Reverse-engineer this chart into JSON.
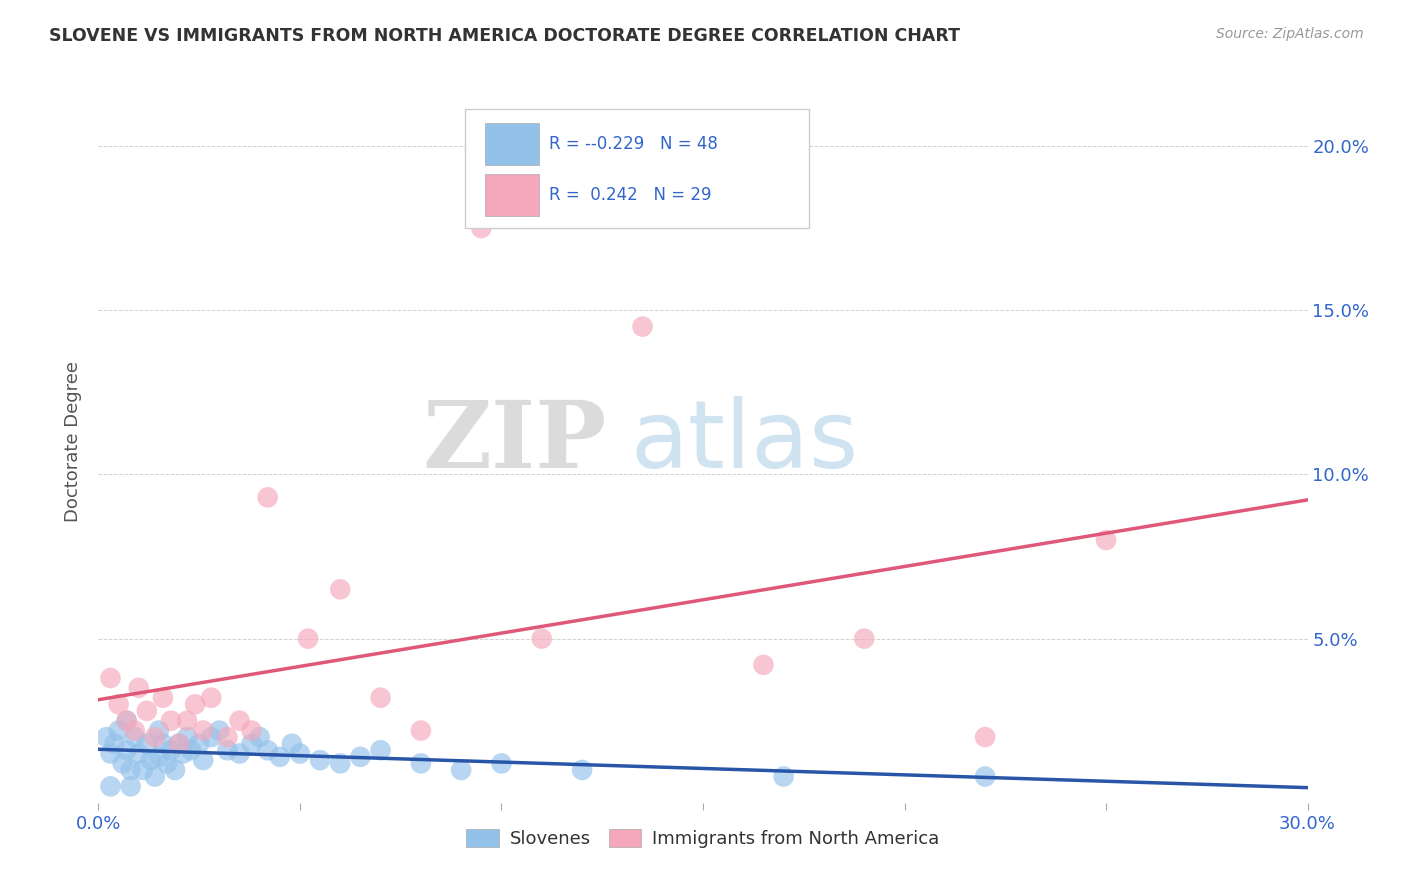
{
  "title": "SLOVENE VS IMMIGRANTS FROM NORTH AMERICA DOCTORATE DEGREE CORRELATION CHART",
  "source": "Source: ZipAtlas.com",
  "ylabel": "Doctorate Degree",
  "xlim": [
    0.0,
    0.3
  ],
  "ylim": [
    0.0,
    0.22
  ],
  "xticks": [
    0.0,
    0.05,
    0.1,
    0.15,
    0.2,
    0.25,
    0.3
  ],
  "yticks": [
    0.0,
    0.05,
    0.1,
    0.15,
    0.2
  ],
  "xtick_labels": [
    "0.0%",
    "",
    "",
    "",
    "",
    "",
    "30.0%"
  ],
  "ytick_labels_right": [
    "",
    "5.0%",
    "10.0%",
    "15.0%",
    "20.0%"
  ],
  "blue_color": "#92C1EA",
  "pink_color": "#F5A8BB",
  "blue_line_color": "#2855A8",
  "pink_line_color": "#E05878",
  "legend_r_blue": "-0.229",
  "legend_n_blue": "48",
  "legend_r_pink": "0.242",
  "legend_n_pink": "29",
  "slovenes_label": "Slovenes",
  "immigrants_label": "Immigrants from North America",
  "watermark_zip": "ZIP",
  "watermark_atlas": "atlas",
  "blue_x": [
    0.002,
    0.003,
    0.004,
    0.005,
    0.006,
    0.007,
    0.007,
    0.008,
    0.009,
    0.01,
    0.011,
    0.012,
    0.013,
    0.014,
    0.015,
    0.015,
    0.016,
    0.017,
    0.018,
    0.019,
    0.02,
    0.021,
    0.022,
    0.023,
    0.025,
    0.026,
    0.028,
    0.03,
    0.032,
    0.035,
    0.038,
    0.04,
    0.042,
    0.045,
    0.048,
    0.05,
    0.055,
    0.06,
    0.065,
    0.07,
    0.08,
    0.09,
    0.1,
    0.12,
    0.17,
    0.22,
    0.003,
    0.008
  ],
  "blue_y": [
    0.02,
    0.015,
    0.018,
    0.022,
    0.012,
    0.016,
    0.025,
    0.01,
    0.02,
    0.015,
    0.01,
    0.018,
    0.013,
    0.008,
    0.022,
    0.014,
    0.018,
    0.012,
    0.016,
    0.01,
    0.018,
    0.015,
    0.02,
    0.016,
    0.018,
    0.013,
    0.02,
    0.022,
    0.016,
    0.015,
    0.018,
    0.02,
    0.016,
    0.014,
    0.018,
    0.015,
    0.013,
    0.012,
    0.014,
    0.016,
    0.012,
    0.01,
    0.012,
    0.01,
    0.008,
    0.008,
    0.005,
    0.005
  ],
  "pink_x": [
    0.003,
    0.005,
    0.007,
    0.009,
    0.01,
    0.012,
    0.014,
    0.016,
    0.018,
    0.02,
    0.022,
    0.024,
    0.026,
    0.028,
    0.032,
    0.035,
    0.038,
    0.042,
    0.052,
    0.06,
    0.07,
    0.08,
    0.095,
    0.11,
    0.135,
    0.165,
    0.19,
    0.22,
    0.25
  ],
  "pink_y": [
    0.038,
    0.03,
    0.025,
    0.022,
    0.035,
    0.028,
    0.02,
    0.032,
    0.025,
    0.018,
    0.025,
    0.03,
    0.022,
    0.032,
    0.02,
    0.025,
    0.022,
    0.093,
    0.05,
    0.065,
    0.032,
    0.022,
    0.175,
    0.05,
    0.145,
    0.042,
    0.05,
    0.02,
    0.08
  ]
}
